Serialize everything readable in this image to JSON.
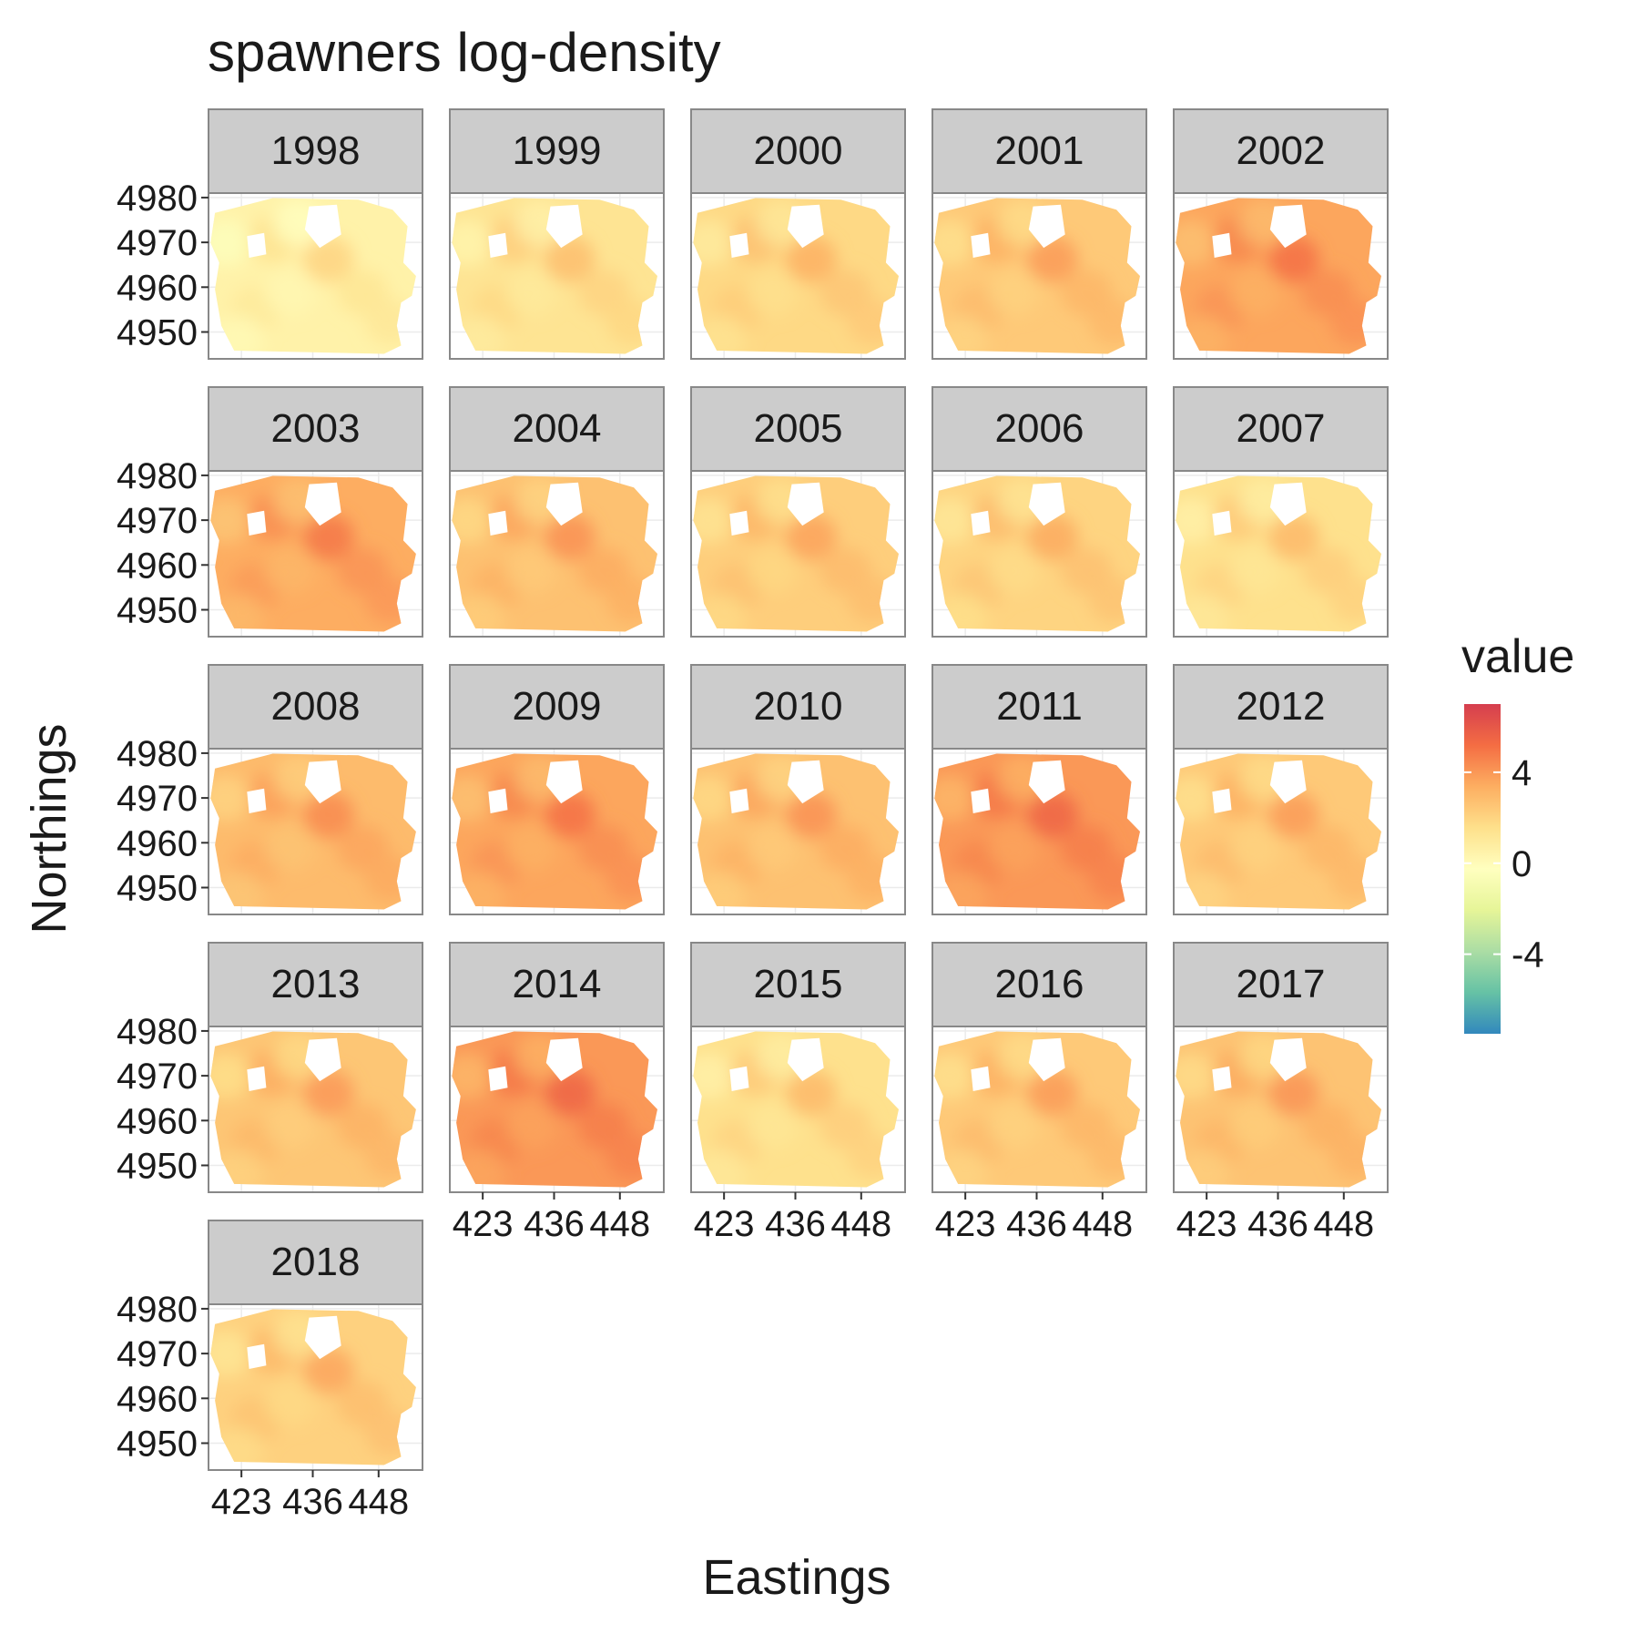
{
  "chart_data": {
    "type": "heatmap",
    "title": "spawners log-density",
    "xlabel": "Eastings",
    "ylabel": "Northings",
    "panels": [
      "1998",
      "1999",
      "2000",
      "2001",
      "2002",
      "2003",
      "2004",
      "2005",
      "2006",
      "2007",
      "2008",
      "2009",
      "2010",
      "2011",
      "2012",
      "2013",
      "2014",
      "2015",
      "2016",
      "2017",
      "2018"
    ],
    "panel_mean_value": [
      0.5,
      1.3,
      1.8,
      2.4,
      3.6,
      3.4,
      2.7,
      2.2,
      2.0,
      1.5,
      2.9,
      3.6,
      2.7,
      4.0,
      2.4,
      2.5,
      4.0,
      1.5,
      2.4,
      2.6,
      2.1
    ],
    "x_ticks": [
      423,
      436,
      448
    ],
    "x_tick_labels": [
      "423",
      "436",
      "448"
    ],
    "y_ticks": [
      4950,
      4960,
      4970,
      4980
    ],
    "y_tick_labels": [
      "4950",
      "4960",
      "4970",
      "4980"
    ],
    "xlim": [
      417,
      456
    ],
    "ylim": [
      4944,
      4981
    ],
    "legend": {
      "title": "value",
      "breaks": [
        4,
        0,
        -4
      ],
      "break_labels": [
        "4",
        "0",
        "-4"
      ],
      "range": [
        -7.5,
        7
      ],
      "palette": [
        "#3288bd",
        "#66c2a5",
        "#abdda4",
        "#e6f598",
        "#ffffbf",
        "#fee08b",
        "#fdae61",
        "#f46d43",
        "#d53e4f"
      ]
    }
  }
}
